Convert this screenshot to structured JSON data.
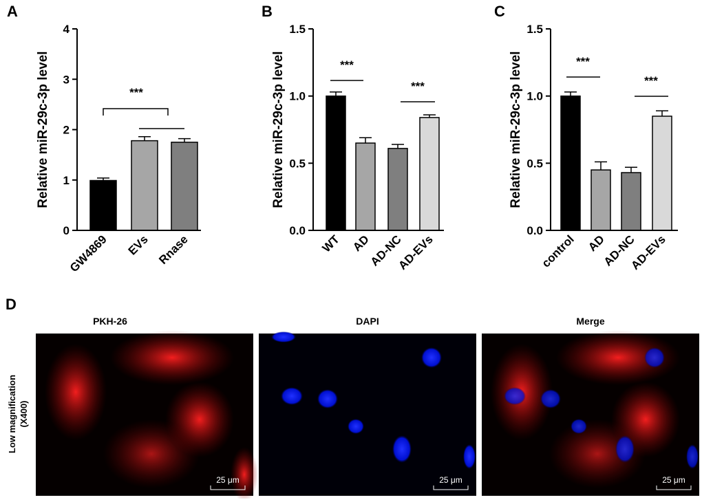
{
  "chart_data": [
    {
      "type": "bar",
      "panel": "A",
      "ylabel": "Relative miR-29c-3p level",
      "categories": [
        "GW4869",
        "EVs",
        "Rnase"
      ],
      "values": [
        0.99,
        1.78,
        1.75
      ],
      "errors": [
        0.05,
        0.08,
        0.07
      ],
      "colors": [
        "#000000",
        "#a6a6a6",
        "#7f7f7f"
      ],
      "ylim": [
        0,
        4
      ],
      "yticks": [
        0,
        1,
        2,
        3,
        4
      ],
      "annotations": [
        "***"
      ]
    },
    {
      "type": "bar",
      "panel": "B",
      "ylabel": "Relative miR-29c-3p level",
      "categories": [
        "WT",
        "AD",
        "AD-NC",
        "AD-EVs"
      ],
      "values": [
        1.0,
        0.65,
        0.61,
        0.84
      ],
      "errors": [
        0.03,
        0.04,
        0.03,
        0.02
      ],
      "colors": [
        "#000000",
        "#a6a6a6",
        "#7f7f7f",
        "#d9d9d9"
      ],
      "ylim": [
        0,
        1.5
      ],
      "yticks": [
        {
          "value": 0,
          "label": "0.0"
        },
        0.5,
        {
          "value": 1,
          "label": "1.0"
        },
        1.5
      ],
      "annotations": [
        "***",
        "***"
      ]
    },
    {
      "type": "bar",
      "panel": "C",
      "ylabel": "Relative miR-29c-3p level",
      "categories": [
        "control",
        "AD",
        "AD-NC",
        "AD-EVs"
      ],
      "values": [
        1.0,
        0.45,
        0.43,
        0.85
      ],
      "errors": [
        0.03,
        0.06,
        0.04,
        0.04
      ],
      "colors": [
        "#000000",
        "#a6a6a6",
        "#7f7f7f",
        "#d9d9d9"
      ],
      "ylim": [
        0,
        1.5
      ],
      "yticks": [
        {
          "value": 0,
          "label": "0.0"
        },
        0.5,
        {
          "value": 1,
          "label": "1.0"
        },
        1.5
      ],
      "annotations": [
        "***",
        "***"
      ]
    }
  ],
  "panel_d": {
    "panel": "D",
    "columns": [
      "PKH-26",
      "DAPI",
      "Merge"
    ],
    "row_label": [
      "Low magnification",
      "(X400)"
    ],
    "scale_bar": "25 μm"
  }
}
